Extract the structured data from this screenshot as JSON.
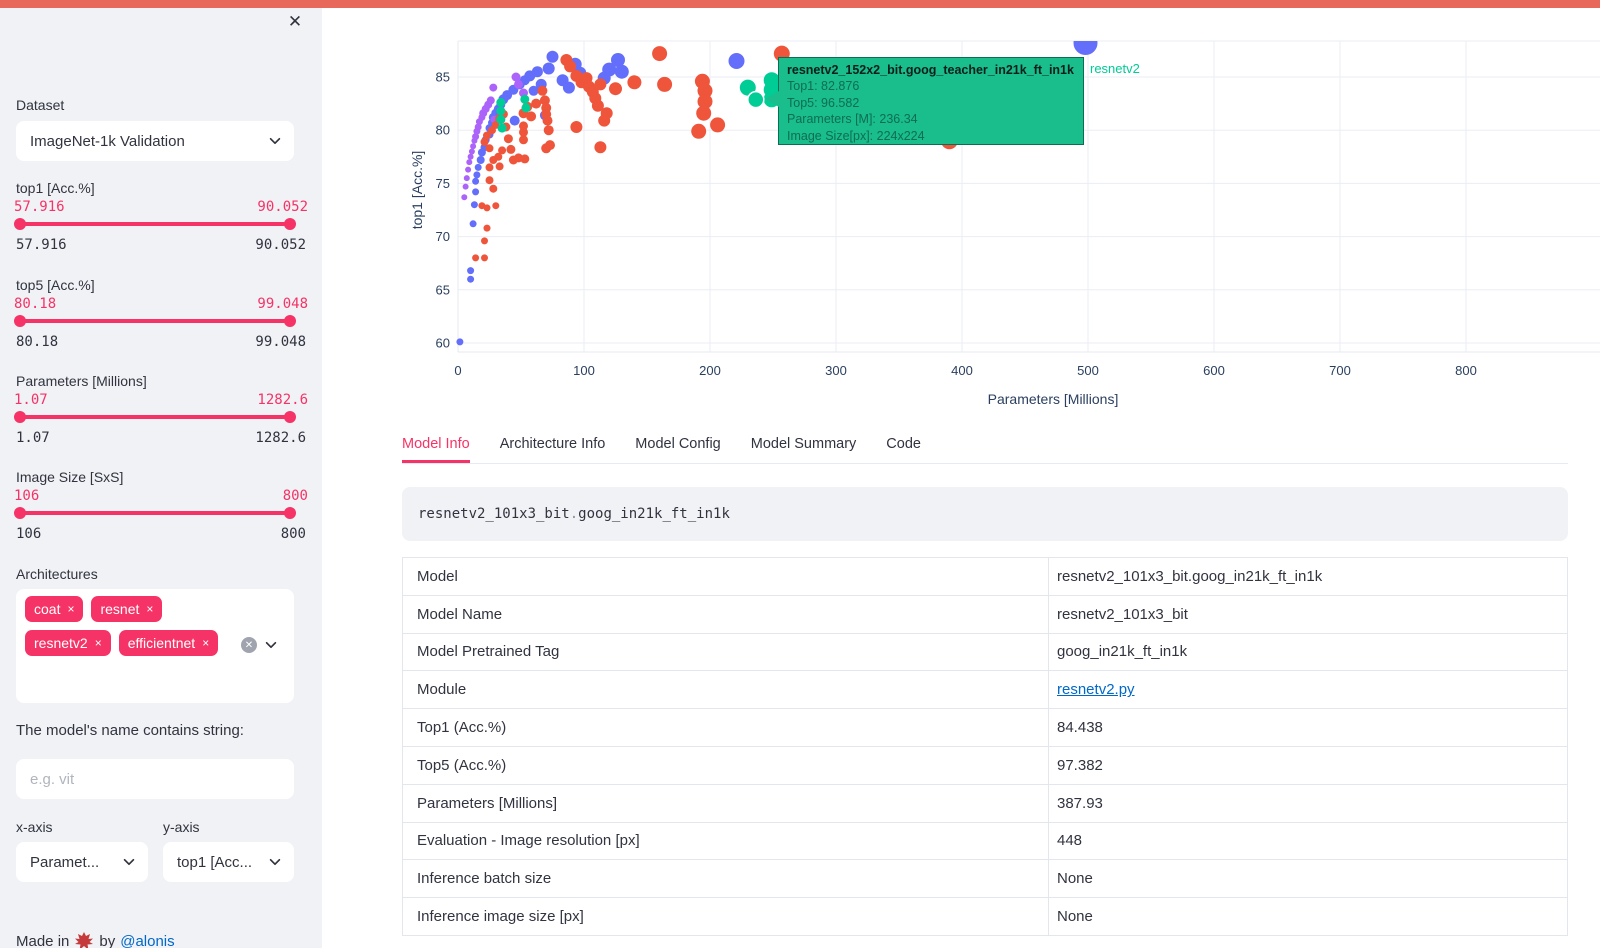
{
  "app": {
    "decoration_color": "#e8685c",
    "primary_color": "#f63366"
  },
  "icons": {
    "close": "✕",
    "tag_remove": "×",
    "clear_all": "✕",
    "chevron_down": "chevron-down",
    "maple_leaf": "maple-leaf"
  },
  "sidebar": {
    "dataset": {
      "label": "Dataset",
      "value": "ImageNet-1k Validation"
    },
    "sliders": [
      {
        "label": "top1 [Acc.%]",
        "min": "57.916",
        "max": "90.052"
      },
      {
        "label": "top5 [Acc.%]",
        "min": "80.18",
        "max": "99.048"
      },
      {
        "label": "Parameters [Millions]",
        "min": "1.07",
        "max": "1282.6"
      },
      {
        "label": "Image Size [SxS]",
        "min": "106",
        "max": "800"
      }
    ],
    "architectures": {
      "label": "Architectures",
      "tags": [
        "coat",
        "resnet",
        "resnetv2",
        "efficientnet"
      ]
    },
    "name_filter": {
      "label": "The model's name contains string:",
      "placeholder": "e.g. vit",
      "value": ""
    },
    "axis_selects": [
      {
        "label": "x-axis",
        "value": "Paramet..."
      },
      {
        "label": "y-axis",
        "value": "top1 [Acc..."
      }
    ],
    "footer": {
      "prefix": "Made in",
      "mid": "by",
      "link": "@alonis"
    }
  },
  "chart_data": {
    "type": "scatter",
    "xlabel": "Parameters [Millions]",
    "ylabel": "top1 [Acc.%]",
    "xlim": [
      -10,
      906
    ],
    "ylim": [
      58.5,
      88.4
    ],
    "xticks": [
      0,
      100,
      200,
      300,
      400,
      500,
      600,
      700,
      800
    ],
    "yticks": [
      60,
      65,
      70,
      75,
      80,
      85
    ],
    "grid": true,
    "legend_visible": false,
    "hover_label": {
      "title": "resnetv2_152x2_bit.goog_teacher_in21k_ft_in1k",
      "lines": [
        "Top1: 82.876",
        "Top5: 96.582",
        "Parameters [M]: 236.34",
        "Image Size[px]: 224x224"
      ],
      "series_label": "resnetv2",
      "bg": "#1abd8c"
    },
    "series": [
      {
        "name": "resnet",
        "color": "#636EFA",
        "points": [
          [
            1.5,
            60.1,
            3.5
          ],
          [
            10,
            66.0,
            3.5
          ],
          [
            10,
            66.8,
            3.5
          ],
          [
            12,
            71.2,
            3.5
          ],
          [
            13,
            73.0,
            3.5
          ],
          [
            14,
            74.2,
            3.5
          ],
          [
            14,
            75.2,
            3.5
          ],
          [
            15,
            75.8,
            3.5
          ],
          [
            16,
            76.5,
            3.5
          ],
          [
            18,
            77.2,
            4
          ],
          [
            19,
            77.9,
            4
          ],
          [
            21,
            78.4,
            4
          ],
          [
            22,
            79.1,
            4
          ],
          [
            25,
            79.6,
            4
          ],
          [
            25,
            80.2,
            4
          ],
          [
            27,
            80.7,
            4
          ],
          [
            28,
            81.2,
            4.5
          ],
          [
            30,
            81.6,
            4.5
          ],
          [
            32,
            82.0,
            4.5
          ],
          [
            34,
            82.4,
            4.5
          ],
          [
            36,
            82.9,
            5
          ],
          [
            39,
            83.3,
            5
          ],
          [
            44,
            83.8,
            5
          ],
          [
            45,
            80.9,
            5
          ],
          [
            49,
            84.3,
            5
          ],
          [
            53,
            84.7,
            5
          ],
          [
            57,
            85.1,
            5.5
          ],
          [
            60,
            83.7,
            5
          ],
          [
            63,
            85.5,
            5.5
          ],
          [
            66,
            84.3,
            5.5
          ],
          [
            69,
            81.4,
            5
          ],
          [
            72,
            85.8,
            6
          ],
          [
            75,
            86.9,
            6
          ],
          [
            83,
            84.7,
            6
          ],
          [
            88,
            84.0,
            6
          ],
          [
            93,
            86.2,
            6.5
          ],
          [
            97,
            85.4,
            6
          ],
          [
            116,
            84.9,
            6.5
          ],
          [
            120,
            85.7,
            7
          ],
          [
            127,
            86.6,
            7
          ],
          [
            130,
            85.5,
            7
          ],
          [
            221,
            86.5,
            8
          ],
          [
            498,
            88.2,
            12
          ]
        ]
      },
      {
        "name": "coat",
        "color": "#AB63FA",
        "points": [
          [
            5,
            73.7,
            3
          ],
          [
            6,
            74.7,
            3
          ],
          [
            7,
            75.5,
            3
          ],
          [
            8,
            76.3,
            3
          ],
          [
            9,
            77.0,
            3
          ],
          [
            10,
            77.5,
            3
          ],
          [
            11,
            78.0,
            3
          ],
          [
            12,
            78.5,
            3
          ],
          [
            13,
            79.0,
            3
          ],
          [
            14,
            79.4,
            3.5
          ],
          [
            15,
            79.9,
            3.5
          ],
          [
            16,
            80.3,
            3.5
          ],
          [
            17,
            80.8,
            3.5
          ],
          [
            19,
            81.2,
            3.5
          ],
          [
            20,
            81.6,
            4
          ],
          [
            22,
            82.0,
            4
          ],
          [
            24,
            82.4,
            4
          ],
          [
            26,
            82.8,
            4
          ],
          [
            28,
            84.0,
            4
          ],
          [
            29,
            81.0,
            4
          ],
          [
            46,
            85.0,
            4.5
          ],
          [
            48,
            84.3,
            4.5
          ],
          [
            52,
            83.5,
            4.5
          ],
          [
            54,
            82.1,
            4.5
          ]
        ]
      },
      {
        "name": "efficientnet",
        "color": "#EF553B",
        "points": [
          [
            14,
            68.0,
            3.5
          ],
          [
            21,
            68.0,
            3.5
          ],
          [
            21,
            69.6,
            3.5
          ],
          [
            23,
            70.8,
            3.5
          ],
          [
            19,
            72.9,
            3.5
          ],
          [
            23,
            72.7,
            3.5
          ],
          [
            30,
            72.9,
            3.5
          ],
          [
            28,
            74.5,
            4
          ],
          [
            25,
            75.3,
            4
          ],
          [
            25,
            76.5,
            4
          ],
          [
            28,
            77.2,
            4
          ],
          [
            32,
            77.5,
            4
          ],
          [
            33,
            76.6,
            4
          ],
          [
            35,
            78.1,
            4
          ],
          [
            25,
            78.3,
            4
          ],
          [
            21,
            78.9,
            4
          ],
          [
            23,
            79.5,
            4
          ],
          [
            27,
            80.0,
            4
          ],
          [
            30,
            80.5,
            4
          ],
          [
            33,
            81.1,
            4.5
          ],
          [
            36,
            81.5,
            4.5
          ],
          [
            38,
            80.3,
            4.5
          ],
          [
            40,
            79.2,
            4.5
          ],
          [
            42,
            78.2,
            4.5
          ],
          [
            44,
            77.2,
            4.5
          ],
          [
            48,
            77.4,
            4.5
          ],
          [
            53,
            77.3,
            4.5
          ],
          [
            52,
            79.1,
            4.5
          ],
          [
            52,
            79.8,
            4.5
          ],
          [
            52,
            80.4,
            4.5
          ],
          [
            52,
            81.6,
            5
          ],
          [
            55,
            82.2,
            5
          ],
          [
            58,
            81.3,
            5
          ],
          [
            62,
            82.5,
            5
          ],
          [
            67,
            83.7,
            5
          ],
          [
            69,
            82.8,
            5
          ],
          [
            70,
            82.1,
            5
          ],
          [
            70,
            81.5,
            5
          ],
          [
            71,
            80.9,
            5
          ],
          [
            72,
            80.0,
            5
          ],
          [
            70,
            78.3,
            5
          ],
          [
            73,
            78.6,
            5
          ],
          [
            86,
            86.6,
            6
          ],
          [
            89,
            86.0,
            6
          ],
          [
            94,
            85.1,
            6
          ],
          [
            94,
            80.3,
            6
          ],
          [
            98,
            84.5,
            6
          ],
          [
            102,
            84.9,
            6
          ],
          [
            104,
            84.1,
            6
          ],
          [
            107,
            83.6,
            6
          ],
          [
            109,
            83.0,
            6
          ],
          [
            111,
            82.3,
            6
          ],
          [
            113,
            84.3,
            6
          ],
          [
            113,
            78.4,
            6
          ],
          [
            116,
            80.9,
            6
          ],
          [
            118,
            81.6,
            6
          ],
          [
            125,
            83.9,
            6.5
          ],
          [
            140,
            84.5,
            7
          ],
          [
            160,
            87.2,
            7.5
          ],
          [
            164,
            84.3,
            7.5
          ],
          [
            191,
            79.9,
            7.5
          ],
          [
            194,
            84.6,
            7.5
          ],
          [
            196,
            83.7,
            7.5
          ],
          [
            196,
            82.7,
            7.5
          ],
          [
            195,
            81.6,
            7.5
          ],
          [
            206,
            80.5,
            7.5
          ],
          [
            257,
            87.2,
            8
          ],
          [
            302,
            82.4,
            8
          ],
          [
            374,
            83.1,
            8.5
          ],
          [
            388,
            83.3,
            8.5
          ],
          [
            390,
            82.1,
            8.5
          ],
          [
            392,
            81.0,
            8.5
          ],
          [
            390,
            79.0,
            8.5
          ]
        ]
      },
      {
        "name": "resnetv2",
        "color": "#00CC96",
        "points": [
          [
            34,
            82.6,
            4.5
          ],
          [
            34,
            81.8,
            4.5
          ],
          [
            34,
            81.0,
            4.5
          ],
          [
            35,
            80.2,
            4.5
          ],
          [
            53,
            82.9,
            4.5
          ],
          [
            54,
            82.1,
            4.5
          ],
          [
            230,
            84.0,
            8
          ],
          [
            249,
            84.7,
            8
          ],
          [
            249,
            83.8,
            8
          ],
          [
            249,
            82.9,
            8
          ],
          [
            236.34,
            82.876,
            8
          ]
        ]
      }
    ]
  },
  "main": {
    "tabs": [
      "Model Info",
      "Architecture Info",
      "Model Config",
      "Model Summary",
      "Code"
    ],
    "active_tab": 0,
    "code_snippet": {
      "model": "resnetv2_101x3_bit",
      "dot": ".",
      "tag": "goog_in21k_ft_in1k"
    },
    "table": {
      "rows": [
        {
          "label": "Model",
          "value": "resnetv2_101x3_bit.goog_in21k_ft_in1k",
          "link": false
        },
        {
          "label": "Model Name",
          "value": "resnetv2_101x3_bit",
          "link": false
        },
        {
          "label": "Model Pretrained Tag",
          "value": "goog_in21k_ft_in1k",
          "link": false
        },
        {
          "label": "Module",
          "value": "resnetv2.py",
          "link": true
        },
        {
          "label": "Top1 (Acc.%)",
          "value": "84.438",
          "link": false
        },
        {
          "label": "Top5 (Acc.%)",
          "value": "97.382",
          "link": false
        },
        {
          "label": "Parameters [Millions]",
          "value": "387.93",
          "link": false
        },
        {
          "label": "Evaluation - Image resolution [px]",
          "value": "448",
          "link": false
        },
        {
          "label": "Inference batch size",
          "value": "None",
          "link": false
        },
        {
          "label": "Inference image size [px]",
          "value": "None",
          "link": false
        }
      ]
    }
  }
}
